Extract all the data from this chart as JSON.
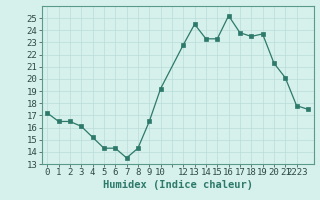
{
  "x": [
    0,
    1,
    2,
    3,
    4,
    5,
    6,
    7,
    8,
    9,
    10,
    12,
    13,
    14,
    15,
    16,
    17,
    18,
    19,
    20,
    21,
    22,
    23
  ],
  "y": [
    17.2,
    16.5,
    16.5,
    16.1,
    15.2,
    14.3,
    14.3,
    13.5,
    14.3,
    16.5,
    19.2,
    22.8,
    24.5,
    23.3,
    23.3,
    25.2,
    23.8,
    23.5,
    23.7,
    21.3,
    20.1,
    17.8,
    17.5
  ],
  "line_color": "#2d7a6a",
  "marker_color": "#2d7a6a",
  "bg_color": "#d6f0ec",
  "grid_color": "#b8ddd8",
  "xlabel": "Humidex (Indice chaleur)",
  "xlim": [
    -0.5,
    23.5
  ],
  "ylim": [
    13,
    26
  ],
  "yticks": [
    13,
    14,
    15,
    16,
    17,
    18,
    19,
    20,
    21,
    22,
    23,
    24,
    25
  ],
  "xtick_labels": [
    "0",
    "1",
    "2",
    "3",
    "4",
    "5",
    "6",
    "7",
    "8",
    "9",
    "10",
    "",
    "12",
    "13",
    "14",
    "15",
    "16",
    "17",
    "18",
    "19",
    "20",
    "21",
    "2223"
  ],
  "xtick_positions": [
    0,
    1,
    2,
    3,
    4,
    5,
    6,
    7,
    8,
    9,
    10,
    11,
    12,
    13,
    14,
    15,
    16,
    17,
    18,
    19,
    20,
    21,
    22
  ],
  "tick_fontsize": 6.5,
  "label_fontsize": 7.5
}
